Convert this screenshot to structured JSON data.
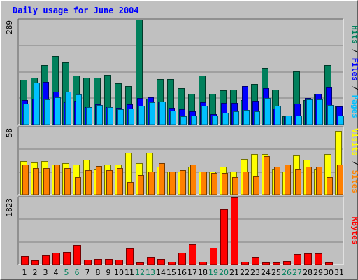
{
  "chart_data": [
    {
      "type": "bar",
      "title": "Daily usage for June 2004",
      "ylabel": "Pages / Files / Hits",
      "ylabel_parts": [
        "Pages",
        "Files",
        "Hits"
      ],
      "ymax_label": "289",
      "ylim": [
        0,
        289
      ],
      "grid": true,
      "categories": [
        "1",
        "2",
        "3",
        "4",
        "5",
        "6",
        "7",
        "8",
        "9",
        "10",
        "11",
        "12",
        "13",
        "14",
        "15",
        "16",
        "17",
        "18",
        "19",
        "20",
        "21",
        "22",
        "23",
        "24",
        "25",
        "26",
        "27",
        "28",
        "29",
        "30",
        "31"
      ],
      "series": [
        {
          "name": "Hits",
          "color": "#00805c",
          "values": [
            124,
            130,
            163,
            189,
            172,
            134,
            130,
            130,
            136,
            114,
            106,
            289,
            72,
            126,
            126,
            101,
            85,
            134,
            85,
            95,
            96,
            68,
            112,
            157,
            97,
            24,
            147,
            68,
            83,
            164,
            52
          ]
        },
        {
          "name": "Files",
          "color": "#0000ff",
          "values": [
            67,
            72,
            118,
            90,
            62,
            65,
            48,
            55,
            48,
            46,
            55,
            74,
            75,
            64,
            47,
            42,
            36,
            62,
            28,
            60,
            60,
            106,
            66,
            100,
            45,
            21,
            58,
            73,
            85,
            103,
            50
          ]
        },
        {
          "name": "Pages",
          "color": "#00c0ff",
          "values": [
            58,
            116,
            69,
            75,
            91,
            82,
            48,
            53,
            48,
            43,
            45,
            52,
            62,
            64,
            38,
            24,
            25,
            52,
            25,
            32,
            37,
            40,
            37,
            73,
            52,
            26,
            25,
            69,
            70,
            53,
            25
          ]
        }
      ]
    },
    {
      "type": "bar",
      "ylabel": "Sites / Visits",
      "ylabel_parts": [
        "Sites",
        "Visits"
      ],
      "ymax_label": "58",
      "ylim": [
        0,
        58
      ],
      "grid": true,
      "categories": [
        "1",
        "2",
        "3",
        "4",
        "5",
        "6",
        "7",
        "8",
        "9",
        "10",
        "11",
        "12",
        "13",
        "14",
        "15",
        "16",
        "17",
        "18",
        "19",
        "20",
        "21",
        "22",
        "23",
        "24",
        "25",
        "26",
        "27",
        "28",
        "29",
        "30",
        "31"
      ],
      "series": [
        {
          "name": "Visits",
          "color": "#ffff00",
          "values": [
            29,
            28,
            29,
            26,
            27,
            26,
            30,
            22,
            26,
            26,
            36,
            27,
            36,
            24,
            20,
            20,
            24,
            20,
            20,
            24,
            20,
            31,
            35,
            35,
            22,
            20,
            34,
            30,
            22,
            35,
            55
          ]
        },
        {
          "name": "Sites",
          "color": "#ff8000",
          "values": [
            26,
            23,
            23,
            26,
            23,
            15,
            21,
            25,
            21,
            23,
            11,
            17,
            20,
            27,
            20,
            21,
            26,
            20,
            19,
            19,
            15,
            20,
            16,
            33,
            24,
            26,
            22,
            24,
            24,
            15,
            26
          ]
        }
      ]
    },
    {
      "type": "bar",
      "ylabel": "KBytes",
      "ymax_label": "1823",
      "ylim": [
        0,
        1823
      ],
      "grid": true,
      "categories": [
        "1",
        "2",
        "3",
        "4",
        "5",
        "6",
        "7",
        "8",
        "9",
        "10",
        "11",
        "12",
        "13",
        "14",
        "15",
        "16",
        "17",
        "18",
        "19",
        "20",
        "21",
        "22",
        "23",
        "24",
        "25",
        "26",
        "27",
        "28",
        "29",
        "30",
        "31"
      ],
      "series": [
        {
          "name": "KBytes",
          "color": "#ff0000",
          "values": [
            220,
            120,
            250,
            330,
            340,
            540,
            130,
            160,
            150,
            140,
            430,
            60,
            210,
            150,
            70,
            330,
            550,
            70,
            460,
            1500,
            1820,
            80,
            200,
            60,
            60,
            100,
            290,
            300,
            310,
            50,
            0
          ]
        }
      ]
    }
  ],
  "day_label_colors": [
    "#000000",
    "#000000",
    "#000000",
    "#000000",
    "#00805c",
    "#00805c",
    "#000000",
    "#000000",
    "#000000",
    "#000000",
    "#000000",
    "#00805c",
    "#00805c",
    "#000000",
    "#000000",
    "#000000",
    "#000000",
    "#000000",
    "#00805c",
    "#00805c",
    "#000000",
    "#000000",
    "#000000",
    "#000000",
    "#000000",
    "#00805c",
    "#00805c",
    "#000000",
    "#000000",
    "#000000",
    "#000000"
  ]
}
